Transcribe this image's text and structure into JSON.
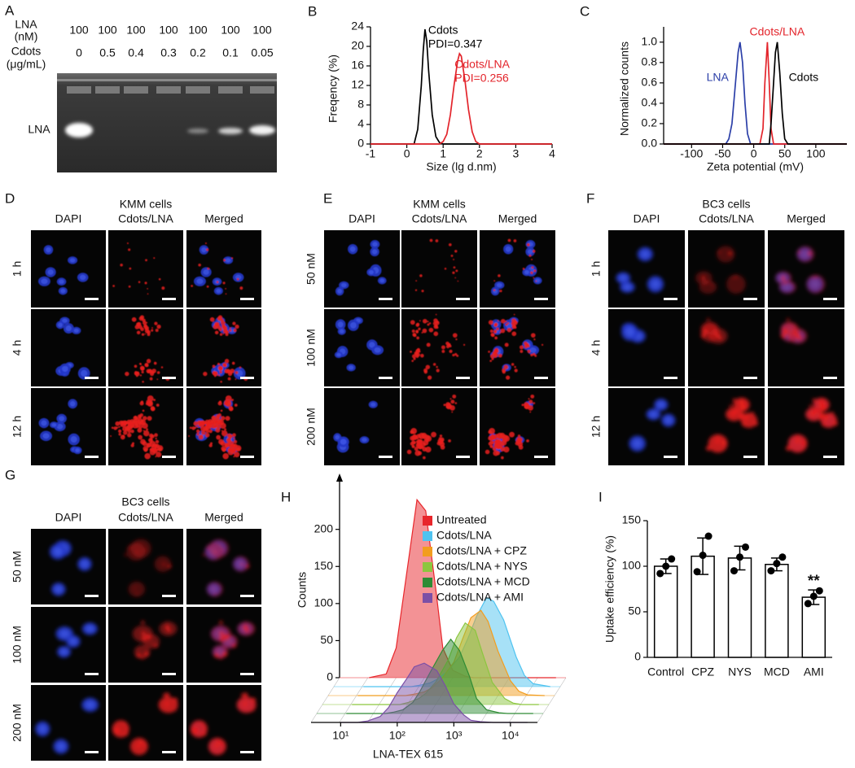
{
  "gel": {
    "letter": "A",
    "lna_label": [
      "LNA",
      "(nM)"
    ],
    "lna": [
      100,
      100,
      100,
      100,
      100,
      100,
      100
    ],
    "cdots_label": [
      "Cdots",
      "(μg/mL)"
    ],
    "cdots": [
      0,
      0.5,
      0.4,
      0.3,
      0.2,
      0.1,
      0.05
    ],
    "band_label": "LNA"
  },
  "microscopy": [
    {
      "letter": "D",
      "title": "KMM cells",
      "columns": [
        "DAPI",
        "Cdots/LNA",
        "Merged"
      ],
      "rows": [
        "1 h",
        "4 h",
        "12 h"
      ]
    },
    {
      "letter": "E",
      "title": "KMM cells",
      "columns": [
        "DAPI",
        "Cdots/LNA",
        "Merged"
      ],
      "rows": [
        "50 nM",
        "100 nM",
        "200 nM"
      ]
    },
    {
      "letter": "F",
      "title": "BC3 cells",
      "columns": [
        "DAPI",
        "Cdots/LNA",
        "Merged"
      ],
      "rows": [
        "1 h",
        "4 h",
        "12 h"
      ]
    },
    {
      "letter": "G",
      "title": "BC3 cells",
      "columns": [
        "DAPI",
        "Cdots/LNA",
        "Merged"
      ],
      "rows": [
        "50 nM",
        "100 nM",
        "200 nM"
      ]
    }
  ],
  "chart_data": [
    {
      "type": "line",
      "panel_label": "B",
      "x_label": "Size (lg d.nm)",
      "y_label": "Freqency (%)",
      "x": [
        -1,
        0.2,
        0.3,
        0.4,
        0.45,
        0.5,
        0.55,
        0.6,
        0.7,
        0.8,
        0.9,
        1.0,
        1.1,
        1.2,
        1.3,
        1.4,
        1.45,
        1.5,
        1.6,
        1.7,
        1.8,
        1.9,
        2.0,
        4
      ],
      "series": [
        {
          "name": "Cdots",
          "note": "PDI=0.347",
          "color": "#000000",
          "values": [
            0,
            0,
            3,
            12,
            19,
            23.5,
            21,
            15,
            6,
            1.5,
            0.3,
            0,
            0,
            0,
            0,
            0,
            0,
            0,
            0,
            0,
            0,
            0,
            0,
            0
          ]
        },
        {
          "name": "Cdots/LNA",
          "note": "PDI=0.256",
          "color": "#e3242b",
          "values": [
            0,
            0,
            0,
            0,
            0,
            0,
            0,
            0,
            0,
            0,
            0,
            0.5,
            2,
            6,
            12,
            17,
            18.5,
            18,
            13,
            7,
            2.5,
            0.5,
            0,
            0
          ]
        }
      ],
      "xlim": [
        -1,
        4
      ],
      "xticks": [
        -1,
        0,
        1,
        2,
        3,
        4
      ],
      "ylim": [
        0,
        24
      ],
      "yticks": [
        0,
        4,
        8,
        12,
        16,
        20,
        24
      ]
    },
    {
      "type": "line",
      "panel_label": "C",
      "x_label": "Zeta potential (mV)",
      "y_label": "Normalized counts",
      "x": [
        -145,
        -45,
        -40,
        -35,
        -30,
        -25,
        -22,
        -18,
        -14,
        -10,
        -5,
        10,
        15,
        18,
        22,
        25,
        28,
        32,
        35,
        38,
        42,
        46,
        50,
        55,
        150
      ],
      "series": [
        {
          "name": "LNA",
          "color": "#2b3fa8",
          "values": [
            0,
            0,
            0.05,
            0.2,
            0.55,
            0.9,
            1.0,
            0.8,
            0.4,
            0.1,
            0,
            0,
            0,
            0,
            0,
            0,
            0,
            0,
            0,
            0,
            0,
            0,
            0,
            0,
            0
          ]
        },
        {
          "name": "Cdots/LNA",
          "color": "#e3242b",
          "values": [
            0,
            0,
            0,
            0,
            0,
            0,
            0,
            0,
            0,
            0,
            0,
            0,
            0.15,
            0.6,
            1.0,
            0.6,
            0.15,
            0,
            0,
            0,
            0,
            0,
            0,
            0,
            0
          ]
        },
        {
          "name": "Cdots",
          "color": "#000000",
          "values": [
            0,
            0,
            0,
            0,
            0,
            0,
            0,
            0,
            0,
            0,
            0,
            0,
            0,
            0,
            0,
            0,
            0.2,
            0.6,
            0.9,
            1.0,
            0.7,
            0.3,
            0.05,
            0,
            0
          ]
        }
      ],
      "xlim": [
        -145,
        150
      ],
      "xticks": [
        -100,
        -50,
        0,
        50,
        100
      ],
      "ylim": [
        0,
        1.15
      ],
      "yticks": [
        {
          "value": 0,
          "label": "0.0"
        },
        0.2,
        0.4,
        0.6,
        0.8,
        {
          "value": 1,
          "label": "1.0"
        }
      ]
    },
    {
      "type": "area",
      "panel_label": "H",
      "x_label": "LNA-TEX 615",
      "y_label": "Counts",
      "x_scale": "log",
      "x": [
        10,
        20,
        30,
        50,
        70,
        100,
        150,
        200,
        300,
        500,
        700,
        1000,
        1500,
        2000,
        3000,
        5000,
        7000,
        10000,
        20000
      ],
      "series": [
        {
          "name": "Untreated",
          "color": "#e8262b",
          "values": [
            0,
            5,
            40,
            160,
            240,
            225,
            120,
            40,
            10,
            2,
            0,
            0,
            0,
            0,
            0,
            0,
            0,
            0,
            0
          ]
        },
        {
          "name": "Cdots/LNA",
          "color": "#4fc3f0",
          "values": [
            0,
            0,
            0,
            0,
            0,
            2,
            5,
            10,
            20,
            40,
            65,
            95,
            120,
            115,
            90,
            40,
            15,
            4,
            0
          ]
        },
        {
          "name": "Cdots/LNA + CPZ",
          "color": "#f29d1f",
          "values": [
            0,
            0,
            0,
            0,
            0,
            2,
            5,
            10,
            22,
            45,
            75,
            105,
            115,
            100,
            60,
            20,
            6,
            1,
            0
          ]
        },
        {
          "name": "Cdots/LNA + NYS",
          "color": "#8cc63f",
          "values": [
            0,
            0,
            0,
            0,
            0,
            3,
            8,
            15,
            30,
            60,
            90,
            110,
            100,
            70,
            30,
            8,
            2,
            0,
            0
          ]
        },
        {
          "name": "Cdots/LNA + MCD",
          "color": "#2e8b34",
          "values": [
            0,
            0,
            0,
            0,
            2,
            5,
            15,
            30,
            55,
            85,
            100,
            85,
            50,
            20,
            5,
            1,
            0,
            0,
            0
          ]
        },
        {
          "name": "Cdots/LNA + AMI",
          "color": "#7b4fa6",
          "values": [
            0,
            0,
            2,
            8,
            20,
            40,
            60,
            75,
            80,
            70,
            50,
            25,
            10,
            3,
            1,
            0,
            0,
            0,
            0
          ]
        }
      ],
      "xlim": [
        3,
        30000
      ],
      "xticks": [
        {
          "value": 10,
          "label": "10¹"
        },
        {
          "value": 100,
          "label": "10²"
        },
        {
          "value": 1000,
          "label": "10³"
        },
        {
          "value": 10000,
          "label": "10⁴"
        }
      ],
      "ylim": [
        0,
        260
      ],
      "yticks": [
        0,
        50,
        100,
        150,
        200
      ]
    },
    {
      "type": "bar",
      "panel_label": "I",
      "y_label": "Uptake efficiency (%)",
      "categories": [
        "Control",
        "CPZ",
        "NYS",
        "MCD",
        "AMI"
      ],
      "values": [
        100,
        111,
        109,
        102,
        66
      ],
      "errors": [
        8,
        20,
        13,
        7,
        8
      ],
      "points": [
        [
          92,
          100,
          108
        ],
        [
          94,
          112,
          133
        ],
        [
          95,
          110,
          121
        ],
        [
          95,
          103,
          110
        ],
        [
          59,
          67,
          73
        ]
      ],
      "annotations": [
        {
          "category": "AMI",
          "text": "**"
        }
      ],
      "color": "#ffffff",
      "ylim": [
        0,
        150
      ],
      "yticks": [
        0,
        50,
        100,
        150
      ]
    }
  ]
}
